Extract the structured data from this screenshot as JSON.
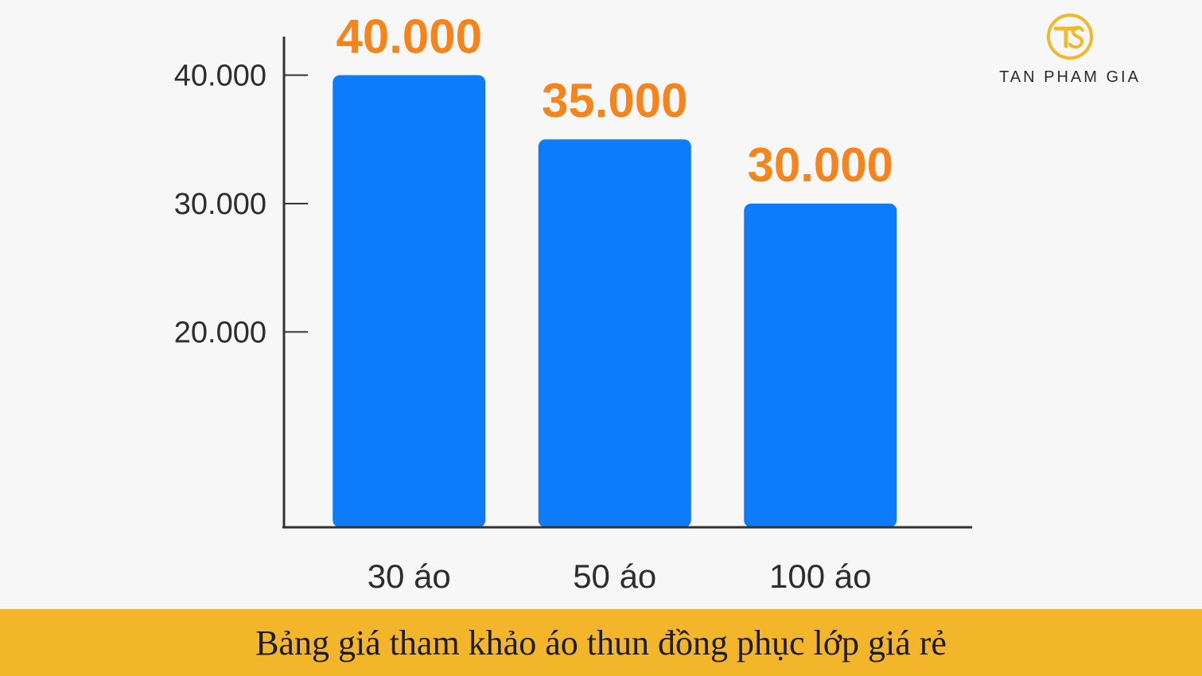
{
  "brand": {
    "name": "TAN PHAM GIA",
    "icon": "tpg-logo-icon",
    "accent_color": "#f0b92c"
  },
  "footer": {
    "text": "Bảng giá tham khảo áo thun đồng phục lớp giá rẻ",
    "background_color": "#f3b52a"
  },
  "chart_data": {
    "type": "bar",
    "categories": [
      "30 áo",
      "50 áo",
      "100 áo"
    ],
    "values": [
      40000,
      35000,
      30000
    ],
    "value_labels": [
      "40.000",
      "35.000",
      "30.000"
    ],
    "yticks": [
      20000,
      30000,
      40000
    ],
    "ytick_labels": [
      "20.000",
      "30.000",
      "40.000"
    ],
    "ylim": [
      4786,
      43006
    ],
    "grid": false,
    "legend": "none",
    "bar_color": "#0d7bfa",
    "label_color": "#f7841a"
  }
}
